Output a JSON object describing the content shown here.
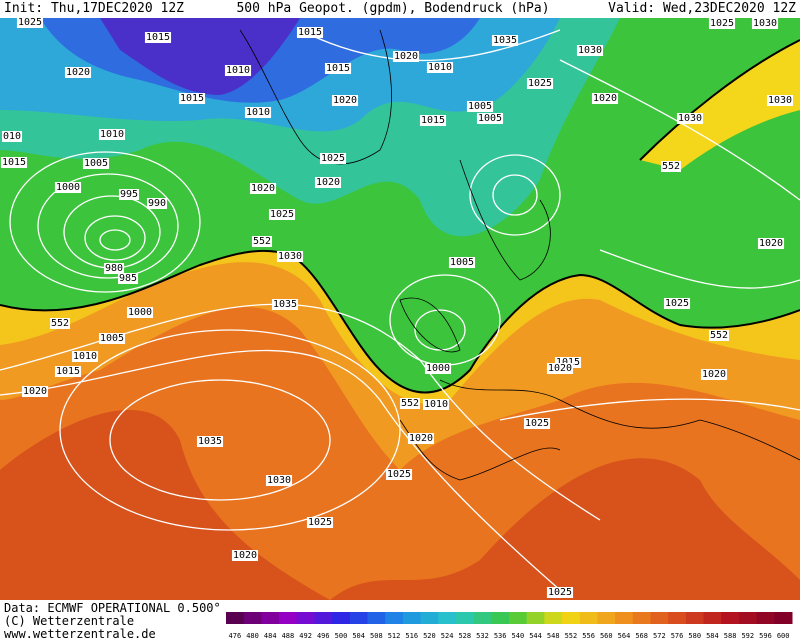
{
  "header": {
    "init": "Init: Thu,17DEC2020 12Z",
    "title": "500 hPa Geopot. (gpdm), Bodendruck (hPa)",
    "valid": "Valid: Wed,23DEC2020 12Z"
  },
  "footer": [
    "Data: ECMWF OPERATIONAL 0.500°",
    "(C) Wetterzentrale",
    "www.wetterzentrale.de"
  ],
  "isobar_labels": [
    "1025",
    "1015",
    "1020",
    "1010",
    "1015",
    "1010",
    "1015",
    "1015",
    "1020",
    "1020",
    "1010",
    "1035",
    "1030",
    "1025",
    "1005",
    "1005",
    "1015",
    "1020",
    "1025",
    "1030",
    "1030",
    "1030",
    "010",
    "1010",
    "1015",
    "1005",
    "1025",
    "1020",
    "1020",
    "1000",
    "995",
    "990",
    "1025",
    "1030",
    "980",
    "985",
    "1005",
    "1020",
    "1025",
    "1035",
    "1000",
    "1005",
    "1010",
    "1015",
    "1020",
    "1000",
    "1010",
    "1015",
    "1020",
    "1020",
    "1025",
    "1020",
    "1035",
    "1025",
    "1030",
    "1025",
    "1020",
    "1025"
  ],
  "geopotential_labels": [
    "552",
    "552",
    "552",
    "552",
    "552"
  ],
  "colorbar_labels": [
    476,
    480,
    484,
    488,
    492,
    496,
    500,
    504,
    508,
    512,
    516,
    520,
    524,
    528,
    532,
    536,
    540,
    544,
    548,
    552,
    556,
    560,
    564,
    568,
    572,
    576,
    580,
    584,
    588,
    592,
    596,
    600
  ]
}
